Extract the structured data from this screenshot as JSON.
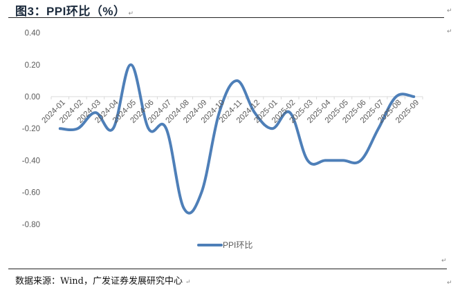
{
  "figure": {
    "title": "图3：PPI环比（%）",
    "source": "数据来源：Wind，广发证券发展研究中心"
  },
  "chart_data": {
    "type": "line",
    "title": "PPI环比（%）",
    "xlabel": "",
    "ylabel": "",
    "ylim": [
      -0.8,
      0.4
    ],
    "yticks": [
      "0.40",
      "0.20",
      "0.00",
      "-0.20",
      "-0.40",
      "-0.60",
      "-0.80"
    ],
    "ytick_values": [
      0.4,
      0.2,
      0.0,
      -0.2,
      -0.4,
      -0.6,
      -0.8
    ],
    "grid": false,
    "smooth": true,
    "legend_position": "bottom",
    "categories": [
      "2024-01",
      "2024-02",
      "2024-03",
      "2024-04",
      "2024-05",
      "2024-06",
      "2024-07",
      "2024-08",
      "2024-09",
      "2024-10",
      "2024-11",
      "2024-12",
      "2025-01",
      "2025-02",
      "2025-03",
      "2025-04",
      "2025-05",
      "2025-06",
      "2025-07",
      "2025-08",
      "2025-09"
    ],
    "series": [
      {
        "name": "PPI环比",
        "color": "#4e7fb8",
        "values": [
          -0.2,
          -0.2,
          -0.1,
          -0.2,
          0.2,
          -0.2,
          -0.2,
          -0.7,
          -0.6,
          -0.1,
          0.1,
          -0.1,
          -0.2,
          -0.1,
          -0.4,
          -0.4,
          -0.4,
          -0.4,
          -0.2,
          0.0,
          0.0
        ]
      }
    ]
  }
}
